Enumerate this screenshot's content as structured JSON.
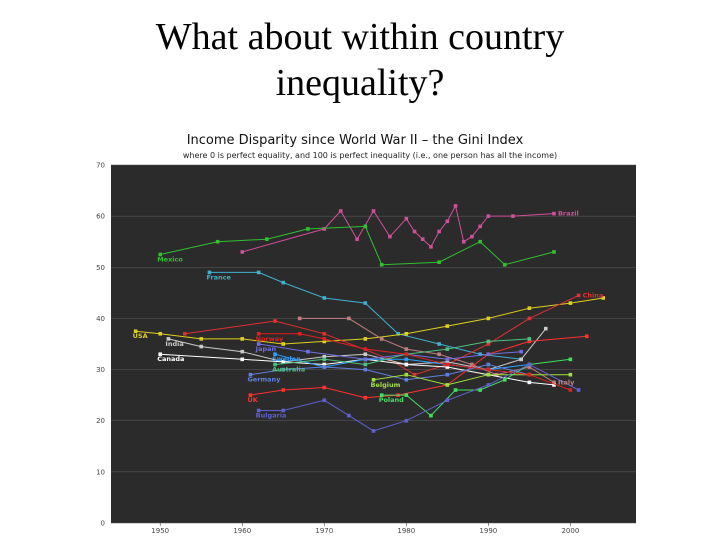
{
  "slide": {
    "title_line1": "What about within country",
    "title_line2": "inequality?"
  },
  "chart_data": {
    "type": "line",
    "title": "Income Disparity since World War II – the Gini Index",
    "subtitle": "where 0 is perfect equality, and 100 is perfect inequality (i.e., one person has all the income)",
    "xlabel": "",
    "ylabel": "",
    "xlim": [
      1944,
      2008
    ],
    "ylim": [
      0,
      70
    ],
    "x_ticks": [
      1950,
      1960,
      1970,
      1980,
      1990,
      2000
    ],
    "y_ticks": [
      0,
      10,
      20,
      30,
      40,
      50,
      60,
      70
    ],
    "grid": "horizontal",
    "background": "#2b2b2b",
    "series": [
      {
        "name": "Brazil",
        "color": "#d0509a",
        "label": "Brazil",
        "x": [
          1960,
          1970,
          1972,
          1974,
          1976,
          1978,
          1980,
          1981,
          1982,
          1983,
          1984,
          1985,
          1986,
          1987,
          1988,
          1989,
          1990,
          1993,
          1998
        ],
        "y": [
          53,
          57.5,
          61,
          55.5,
          61,
          56,
          59.5,
          57,
          55.5,
          54,
          57,
          59,
          62,
          55,
          56,
          58,
          60,
          60,
          60.5
        ]
      },
      {
        "name": "Mexico",
        "color": "#30c030",
        "label": "Mexico",
        "x": [
          1950,
          1957,
          1963,
          1968,
          1975,
          1977,
          1984,
          1989,
          1992,
          1998
        ],
        "y": [
          52.5,
          55,
          55.5,
          57.5,
          58,
          50.5,
          51,
          55,
          50.5,
          53
        ]
      },
      {
        "name": "France",
        "color": "#40b0d0",
        "label": "France",
        "x": [
          1956,
          1962,
          1965,
          1970,
          1975,
          1979,
          1984,
          1989,
          1994
        ],
        "y": [
          49,
          49,
          47,
          44,
          43,
          37,
          35,
          33,
          32
        ]
      },
      {
        "name": "USA",
        "color": "#e0d020",
        "label": "USA",
        "x": [
          1947,
          1950,
          1955,
          1960,
          1965,
          1970,
          1975,
          1980,
          1985,
          1990,
          1995,
          2000,
          2004
        ],
        "y": [
          37.5,
          37,
          36,
          36,
          35,
          35.5,
          36,
          37,
          38.5,
          40,
          42,
          43,
          44
        ]
      },
      {
        "name": "China",
        "color": "#e03030",
        "label": "China",
        "x": [
          1953,
          1964,
          1970,
          1978,
          1981,
          1985,
          1990,
          1995,
          2001
        ],
        "y": [
          37,
          39.5,
          37,
          32,
          29,
          31,
          35,
          40,
          44.5
        ]
      },
      {
        "name": "Italy",
        "color": "#c08080",
        "label": "Italy",
        "x": [
          1967,
          1973,
          1977,
          1980,
          1984,
          1988,
          1991,
          1995,
          1998
        ],
        "y": [
          40,
          40,
          36,
          34,
          33,
          31,
          29,
          30.5,
          27.5
        ]
      },
      {
        "name": "India",
        "color": "#cccccc",
        "label": "India",
        "x": [
          1951,
          1955,
          1960,
          1965,
          1970,
          1975,
          1980,
          1985,
          1990,
          1994,
          1997
        ],
        "y": [
          36,
          34.5,
          33.5,
          31.5,
          32.5,
          33,
          31,
          31.5,
          30,
          32,
          38
        ]
      },
      {
        "name": "Canada",
        "color": "#ffffff",
        "label": "Canada",
        "x": [
          1950,
          1960,
          1965,
          1970,
          1975,
          1980,
          1985,
          1990,
          1995,
          1998
        ],
        "y": [
          33,
          32,
          31.5,
          31,
          32,
          31,
          30.5,
          29,
          27.5,
          27
        ]
      },
      {
        "name": "UK",
        "color": "#ff3030",
        "label": "UK",
        "x": [
          1961,
          1965,
          1970,
          1975,
          1979,
          1985,
          1990,
          1995,
          2002
        ],
        "y": [
          25,
          26,
          26.5,
          24.5,
          25,
          27,
          33,
          35.5,
          36.5
        ]
      },
      {
        "name": "Sweden",
        "color": "#30a0ff",
        "label": "Sweden",
        "x": [
          1964,
          1970,
          1975,
          1980,
          1985,
          1990,
          1995
        ],
        "y": [
          33,
          30.5,
          32,
          32,
          31,
          30,
          31
        ]
      },
      {
        "name": "Japan",
        "color": "#7070e0",
        "label": "Japan",
        "x": [
          1962,
          1968,
          1975,
          1980,
          1985,
          1990,
          1994
        ],
        "y": [
          35,
          33.5,
          32,
          33,
          32,
          33,
          33.5
        ]
      },
      {
        "name": "Australia",
        "color": "#50c080",
        "label": "Australia",
        "x": [
          1964,
          1970,
          1975,
          1980,
          1985,
          1990,
          1995
        ],
        "y": [
          31,
          32,
          31,
          33,
          34,
          35.5,
          36
        ]
      },
      {
        "name": "Germany",
        "color": "#6080e0",
        "label": "Germany",
        "x": [
          1961,
          1965,
          1970,
          1975,
          1980,
          1985,
          1990,
          1995
        ],
        "y": [
          29,
          30,
          30.5,
          30,
          28,
          29,
          31,
          29
        ]
      },
      {
        "name": "Belgium",
        "color": "#a0e040",
        "label": "Belgium",
        "x": [
          1976,
          1980,
          1985,
          1990,
          1995,
          2000
        ],
        "y": [
          28,
          29,
          27,
          29,
          29,
          29
        ]
      },
      {
        "name": "Poland",
        "color": "#40e060",
        "label": "Poland",
        "x": [
          1977,
          1980,
          1983,
          1986,
          1989,
          1992,
          1995,
          2000
        ],
        "y": [
          25,
          25,
          21,
          26,
          26,
          28,
          31,
          32
        ]
      },
      {
        "name": "Norway",
        "color": "#e02020",
        "label": "Norway",
        "x": [
          1962,
          1967,
          1970,
          1975,
          1980,
          1985,
          1990,
          1995,
          2000
        ],
        "y": [
          37,
          37,
          36,
          34,
          33,
          31,
          30,
          29,
          26
        ]
      },
      {
        "name": "Bulgaria",
        "color": "#6060d0",
        "label": "Bulgaria",
        "x": [
          1962,
          1965,
          1970,
          1973,
          1976,
          1980,
          1985,
          1990,
          1995,
          2001
        ],
        "y": [
          22,
          22,
          24,
          21,
          18,
          20,
          24,
          27,
          31,
          26
        ]
      }
    ]
  }
}
